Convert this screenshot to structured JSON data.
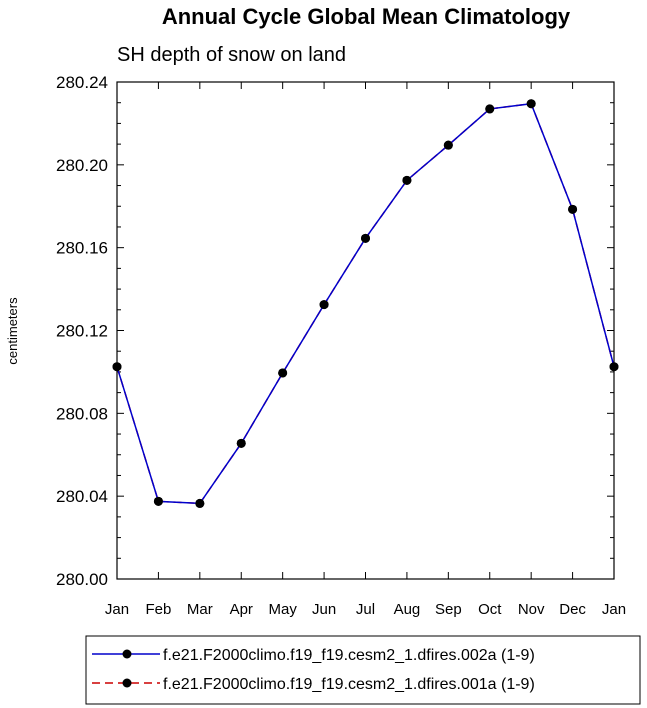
{
  "chart_data": {
    "type": "line",
    "title": "Annual Cycle Global Mean Climatology",
    "subtitle": "SH depth of snow on land",
    "xlabel": "",
    "ylabel": "centimeters",
    "categories": [
      "Jan",
      "Feb",
      "Mar",
      "Apr",
      "May",
      "Jun",
      "Jul",
      "Aug",
      "Sep",
      "Oct",
      "Nov",
      "Dec",
      "Jan"
    ],
    "ylim": [
      280.0,
      280.24
    ],
    "yticks": [
      "280.00",
      "280.04",
      "280.08",
      "280.12",
      "280.16",
      "280.20",
      "280.24"
    ],
    "grid": false,
    "legend_position": "bottom",
    "series": [
      {
        "name": "f.e21.F2000climo.f19_f19.cesm2_1.dfires.002a (1-9)",
        "color": "#0000cc",
        "line_style": "solid",
        "marker": "filled-circle",
        "values": [
          280.1025,
          280.0375,
          280.0365,
          280.0655,
          280.0995,
          280.1325,
          280.1645,
          280.1925,
          280.2095,
          280.227,
          280.2295,
          280.1785,
          280.1025
        ]
      },
      {
        "name": "f.e21.F2000climo.f19_f19.cesm2_1.dfires.001a (1-9)",
        "color": "#cc0000",
        "line_style": "dashed",
        "marker": "filled-circle",
        "values": [
          280.1025,
          280.0375,
          280.0365,
          280.0655,
          280.0995,
          280.1325,
          280.1645,
          280.1925,
          280.2095,
          280.227,
          280.2295,
          280.1785,
          280.1025
        ]
      }
    ]
  }
}
